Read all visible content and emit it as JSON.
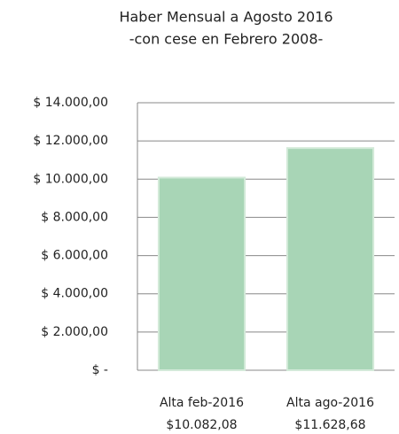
{
  "chart_data": {
    "type": "bar",
    "title": "Haber Mensual a Agosto 2016",
    "subtitle": "-con cese en Febrero 2008-",
    "categories": [
      "Alta feb-2016",
      "Alta ago-2016"
    ],
    "values": [
      10082.08,
      11628.68
    ],
    "value_labels": [
      "$10.082,08",
      "$11.628,68"
    ],
    "color": "#a8d5b6",
    "ylim": [
      0,
      14000
    ],
    "yticks": [
      {
        "value": 0,
        "label": "$ -"
      },
      {
        "value": 2000,
        "label": "$ 2.000,00"
      },
      {
        "value": 4000,
        "label": "$ 4.000,00"
      },
      {
        "value": 6000,
        "label": "$ 6.000,00"
      },
      {
        "value": 8000,
        "label": "$ 8.000,00"
      },
      {
        "value": 10000,
        "label": "$ 10.000,00"
      },
      {
        "value": 12000,
        "label": "$ 12.000,00"
      },
      {
        "value": 14000,
        "label": "$ 14.000,00"
      }
    ],
    "grid": true
  }
}
